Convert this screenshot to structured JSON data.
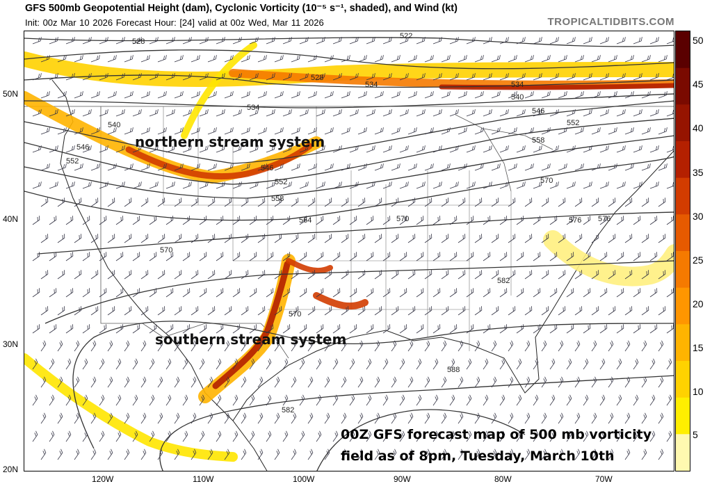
{
  "header": {
    "title": "GFS 500mb Geopotential Height (dam), Cyclonic Vorticity (10⁻⁵ s⁻¹, shaded), and Wind (kt)",
    "subtitle": "Init: 00z Mar 10 2026   Forecast Hour: [24]   valid at 00z Wed, Mar 11 2026",
    "brand": "TROPICALTIDBITS.COM"
  },
  "colorbar": {
    "ticks": [
      "50",
      "45",
      "40",
      "35",
      "30",
      "25",
      "20",
      "15",
      "10",
      "5"
    ],
    "colors": [
      "#fff9b0",
      "#ffef00",
      "#ffd200",
      "#ffb400",
      "#ff9600",
      "#f57a00",
      "#e65a00",
      "#d23c00",
      "#b42000",
      "#961400",
      "#7a0a00",
      "#5a0000"
    ]
  },
  "axes": {
    "lat_labels": [
      "50N",
      "40N",
      "30N",
      "20N"
    ],
    "lon_labels": [
      "120W",
      "110W",
      "100W",
      "90W",
      "80W",
      "70W"
    ]
  },
  "contour_labels": [
    "528",
    "522",
    "528",
    "534",
    "534",
    "540",
    "546",
    "552",
    "534",
    "540",
    "546",
    "552",
    "558",
    "546",
    "552",
    "558",
    "564",
    "570",
    "570",
    "570",
    "576",
    "582",
    "570",
    "576",
    "582",
    "588"
  ],
  "annotations": {
    "northern": "northern stream system",
    "southern": "southern stream system",
    "caption_line1": "00Z GFS forecast map of 500 mb vorticity",
    "caption_line2": "field as of 8pm, Tuesday, March 10th"
  }
}
